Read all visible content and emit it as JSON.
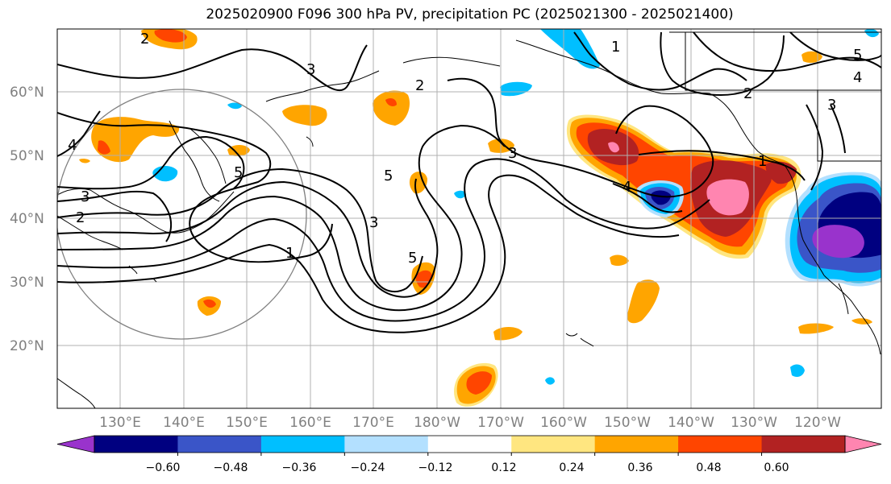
{
  "title": "2025020900 F096 300 hPa PV, precipitation PC (2025021300 - 2025021400)",
  "map": {
    "lat_labels": [
      "60°N",
      "50°N",
      "40°N",
      "30°N",
      "20°N"
    ],
    "lon_labels": [
      "130°E",
      "140°E",
      "150°E",
      "160°E",
      "170°E",
      "180°W",
      "170°W",
      "160°W",
      "150°W",
      "140°W",
      "130°W",
      "120°W"
    ],
    "contour_labels": [
      "1",
      "2",
      "3",
      "4",
      "5"
    ]
  },
  "colorbar": {
    "colors": [
      "#9933cc",
      "#000080",
      "#3a55c8",
      "#00bfff",
      "#b3e0ff",
      "#ffffff",
      "#ffe680",
      "#ffa500",
      "#ff4500",
      "#b22222",
      "#ff85b0"
    ],
    "tick_labels": [
      "−0.60",
      "−0.48",
      "−0.36",
      "−0.24",
      "−0.12",
      "0.12",
      "0.24",
      "0.36",
      "0.48",
      "0.60"
    ]
  }
}
